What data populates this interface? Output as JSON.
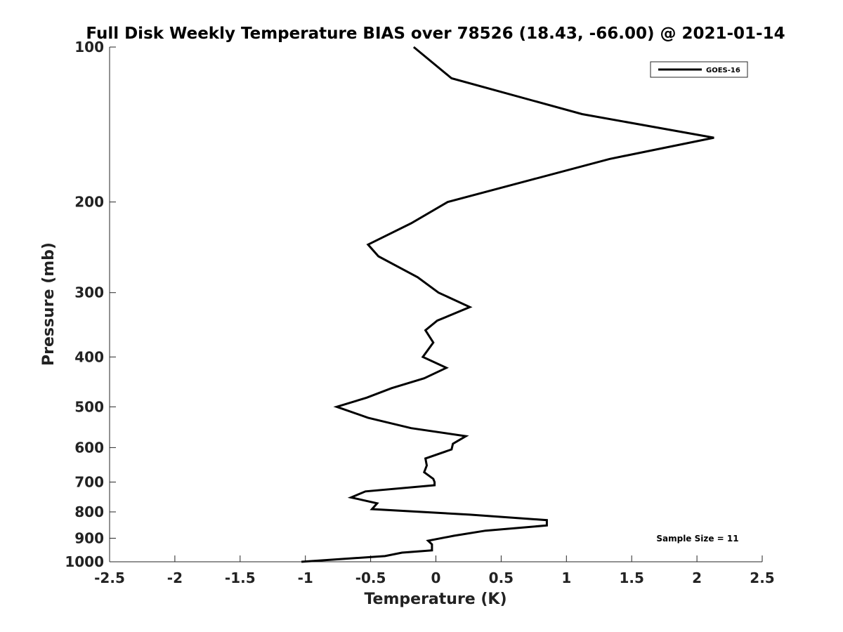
{
  "chart_data": {
    "type": "line",
    "title": "Full Disk Weekly Temperature BIAS over 78526 (18.43, -66.00) @ 2021-01-14",
    "xlabel": "Temperature (K)",
    "ylabel": "Pressure (mb)",
    "xlim": [
      -2.5,
      2.5
    ],
    "ylim": [
      1000,
      100
    ],
    "yscale": "log",
    "y_reversed": true,
    "xticks": [
      -2.5,
      -2,
      -1.5,
      -1,
      -0.5,
      0,
      0.5,
      1,
      1.5,
      2,
      2.5
    ],
    "xtick_labels": [
      "-2.5",
      "-2",
      "-1.5",
      "-1",
      "-0.5",
      "0",
      "0.5",
      "1",
      "1.5",
      "2",
      "2.5"
    ],
    "yticks": [
      100,
      200,
      300,
      400,
      500,
      600,
      700,
      800,
      900,
      1000
    ],
    "ytick_labels": [
      "100",
      "200",
      "300",
      "400",
      "500",
      "600",
      "700",
      "800",
      "900",
      "1000"
    ],
    "grid": false,
    "legend_position": "top-right",
    "series": [
      {
        "name": "GOES-16",
        "color": "#000000",
        "points": [
          [
            -0.17,
            100
          ],
          [
            0.12,
            115
          ],
          [
            1.12,
            135
          ],
          [
            2.13,
            150
          ],
          [
            1.33,
            165
          ],
          [
            0.09,
            200
          ],
          [
            -0.19,
            220
          ],
          [
            -0.52,
            242
          ],
          [
            -0.44,
            255
          ],
          [
            -0.14,
            280
          ],
          [
            0.02,
            300
          ],
          [
            0.26,
            320
          ],
          [
            0.01,
            340
          ],
          [
            -0.08,
            355
          ],
          [
            -0.02,
            375
          ],
          [
            -0.1,
            400
          ],
          [
            0.08,
            420
          ],
          [
            -0.09,
            440
          ],
          [
            -0.34,
            460
          ],
          [
            -0.53,
            480
          ],
          [
            -0.76,
            500
          ],
          [
            -0.52,
            525
          ],
          [
            -0.19,
            550
          ],
          [
            0.23,
            570
          ],
          [
            0.13,
            590
          ],
          [
            0.12,
            605
          ],
          [
            -0.08,
            630
          ],
          [
            -0.07,
            650
          ],
          [
            -0.09,
            670
          ],
          [
            -0.02,
            690
          ],
          [
            -0.01,
            700
          ],
          [
            -0.01,
            710
          ],
          [
            -0.54,
            730
          ],
          [
            -0.65,
            750
          ],
          [
            -0.45,
            770
          ],
          [
            -0.49,
            790
          ],
          [
            0.26,
            810
          ],
          [
            0.85,
            830
          ],
          [
            0.85,
            850
          ],
          [
            0.38,
            870
          ],
          [
            0.14,
            890
          ],
          [
            -0.06,
            910
          ],
          [
            -0.03,
            925
          ],
          [
            -0.03,
            950
          ],
          [
            -0.26,
            960
          ],
          [
            -0.39,
            975
          ],
          [
            -1.03,
            1000
          ]
        ]
      }
    ],
    "annotations": [
      "Sample Size = 11"
    ]
  }
}
